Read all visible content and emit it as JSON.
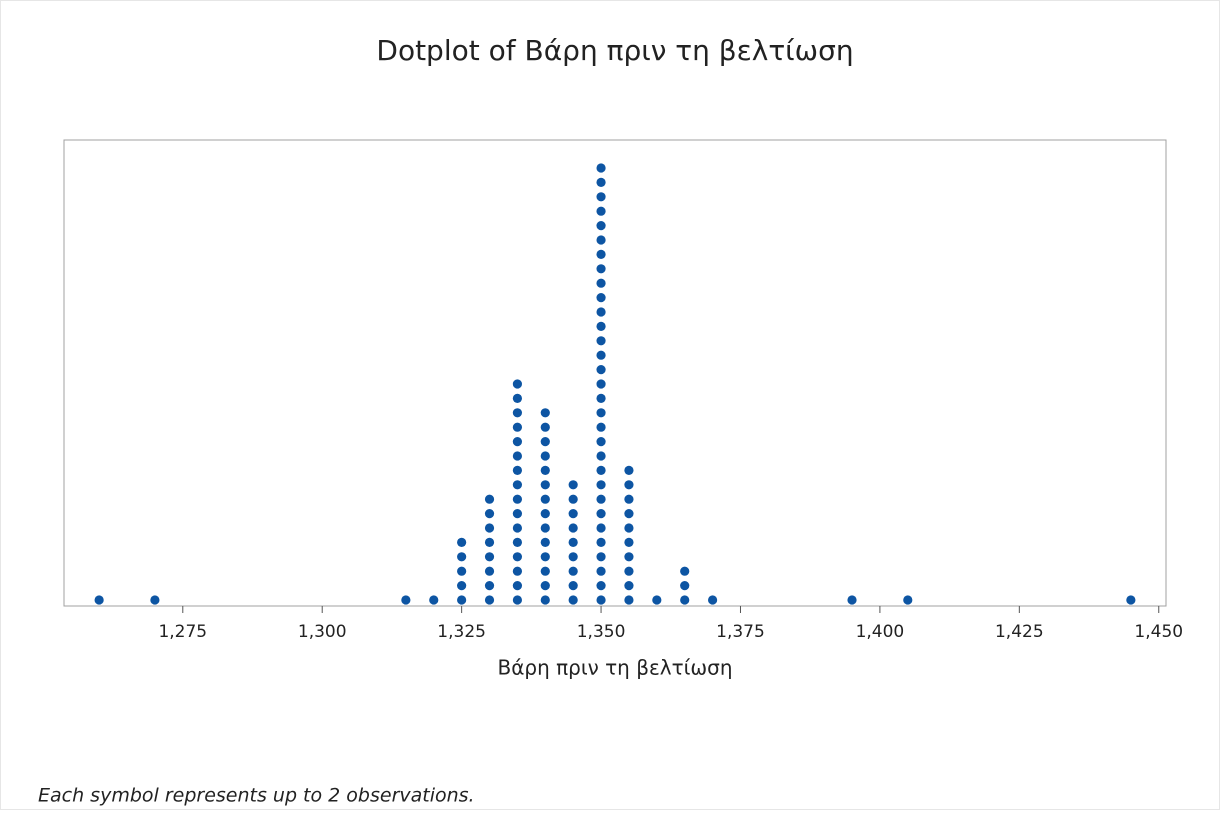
{
  "chart_data": {
    "type": "dotplot",
    "title": "Dotplot of Βάρη πριν τη βελτίωση",
    "xlabel": "Βάρη πριν τη βελτίωση",
    "footnote": "Each symbol represents up to 2 observations.",
    "x": [
      1260,
      1270,
      1315,
      1320,
      1325,
      1330,
      1335,
      1340,
      1345,
      1350,
      1355,
      1360,
      1365,
      1370,
      1395,
      1405,
      1445
    ],
    "values": [
      1,
      1,
      1,
      1,
      5,
      8,
      16,
      14,
      9,
      31,
      10,
      1,
      3,
      1,
      1,
      1,
      1
    ],
    "color": "#0d55a3",
    "xlim": [
      1253.7,
      1451.3
    ],
    "xticks": [
      {
        "value": 1275,
        "label": "1,275"
      },
      {
        "value": 1300,
        "label": "1,300"
      },
      {
        "value": 1325,
        "label": "1,325"
      },
      {
        "value": 1350,
        "label": "1,350"
      },
      {
        "value": 1375,
        "label": "1,375"
      },
      {
        "value": 1400,
        "label": "1,400"
      },
      {
        "value": 1425,
        "label": "1,425"
      },
      {
        "value": 1450,
        "label": "1,450"
      }
    ]
  }
}
